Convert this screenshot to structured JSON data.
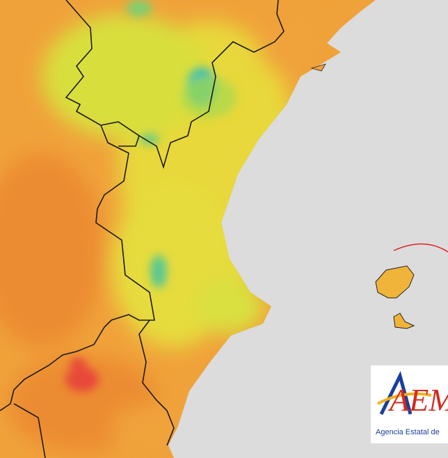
{
  "logo": {
    "mark": "AEM",
    "caption": "Agencia Estatal de"
  }
}
